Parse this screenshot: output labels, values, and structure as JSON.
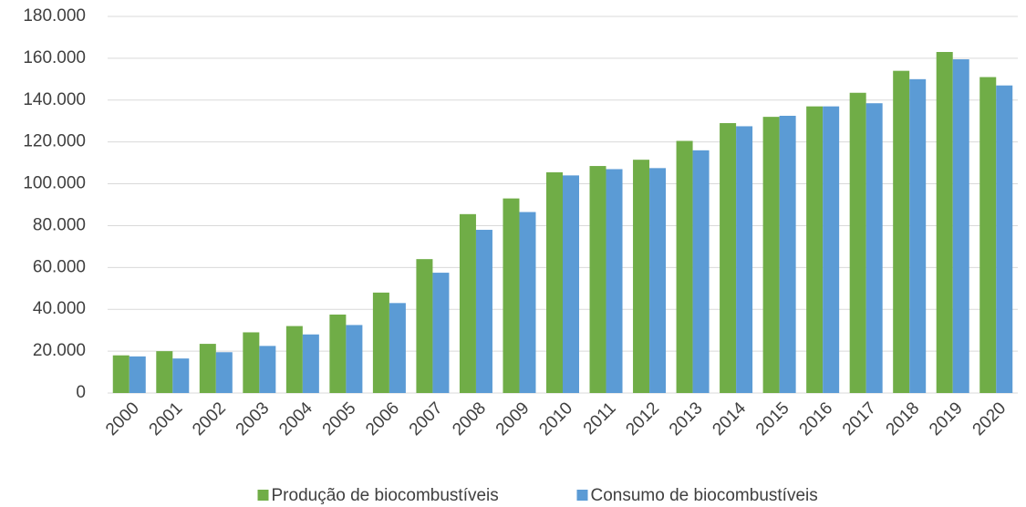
{
  "chart_data": {
    "type": "bar",
    "categories": [
      "2000",
      "2001",
      "2002",
      "2003",
      "2004",
      "2005",
      "2006",
      "2007",
      "2008",
      "2009",
      "2010",
      "2011",
      "2012",
      "2013",
      "2014",
      "2015",
      "2016",
      "2017",
      "2018",
      "2019",
      "2020"
    ],
    "series": [
      {
        "name": "Produção de biocombustíveis",
        "color": "#70ad47",
        "values": [
          18000,
          20000,
          23500,
          29000,
          32000,
          37500,
          48000,
          64000,
          85500,
          93000,
          105500,
          108500,
          111500,
          120500,
          129000,
          132000,
          137000,
          143500,
          154000,
          163000,
          151000
        ]
      },
      {
        "name": "Consumo de biocombustíveis",
        "color": "#5b9bd5",
        "values": [
          17500,
          16500,
          19500,
          22500,
          28000,
          32500,
          43000,
          57500,
          78000,
          86500,
          104000,
          107000,
          107500,
          116000,
          127500,
          132500,
          137000,
          138500,
          150000,
          159500,
          147000
        ]
      }
    ],
    "ylim": [
      0,
      180000
    ],
    "yticks": [
      0,
      {
        "value": 20000,
        "label": "20.000"
      },
      {
        "value": 40000,
        "label": "40.000"
      },
      {
        "value": 60000,
        "label": "60.000"
      },
      {
        "value": 80000,
        "label": "80.000"
      },
      {
        "value": 100000,
        "label": "100.000"
      },
      {
        "value": 120000,
        "label": "120.000"
      },
      {
        "value": 140000,
        "label": "140.000"
      },
      {
        "value": 160000,
        "label": "160.000"
      },
      {
        "value": 180000,
        "label": "180.000"
      }
    ],
    "grid": true,
    "legend": "bottom"
  }
}
